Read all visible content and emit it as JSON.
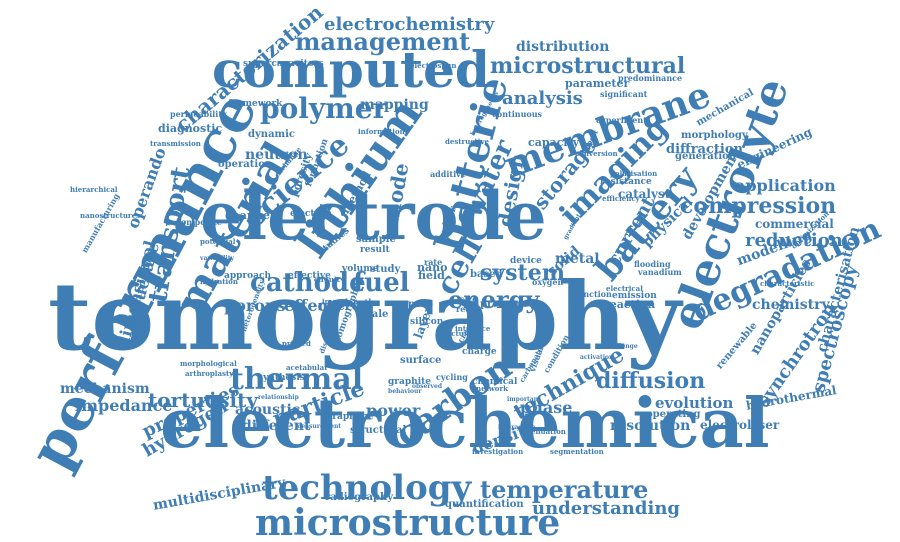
{
  "style": {
    "word_color": "#3f7db5",
    "background": "#ffffff"
  },
  "words": [
    {
      "text": "tomography"
    },
    {
      "text": "electrochemical"
    },
    {
      "text": "electrode"
    },
    {
      "text": "performance"
    },
    {
      "text": "computed"
    },
    {
      "text": "lithium"
    },
    {
      "text": "material"
    },
    {
      "text": "electrolyte"
    },
    {
      "text": "batterie"
    },
    {
      "text": "membrane"
    },
    {
      "text": "battery"
    },
    {
      "text": "microstructure"
    },
    {
      "text": "technology"
    },
    {
      "text": "degradation"
    },
    {
      "text": "carbon"
    },
    {
      "text": "thermal"
    },
    {
      "text": "imaging"
    },
    {
      "text": "science"
    },
    {
      "text": "polymer"
    },
    {
      "text": "management"
    },
    {
      "text": "cathode"
    },
    {
      "text": "fuel"
    },
    {
      "text": "cell"
    },
    {
      "text": "transport"
    },
    {
      "text": "water"
    },
    {
      "text": "temperature"
    },
    {
      "text": "technique"
    },
    {
      "text": "energy"
    },
    {
      "text": "particle"
    },
    {
      "text": "microstructural"
    },
    {
      "text": "characterization"
    },
    {
      "text": "electrochemistry"
    },
    {
      "text": "compression"
    },
    {
      "text": "application"
    },
    {
      "text": "diffusion"
    },
    {
      "text": "spectroscopy"
    },
    {
      "text": "synchrotron"
    },
    {
      "text": "properties"
    },
    {
      "text": "tortuosity"
    },
    {
      "text": "hydrogen"
    },
    {
      "text": "system"
    },
    {
      "text": "anode"
    },
    {
      "text": "design"
    },
    {
      "text": "storage"
    },
    {
      "text": "reduction"
    },
    {
      "text": "understanding"
    },
    {
      "text": "operando"
    },
    {
      "text": "structure"
    },
    {
      "text": "analysis"
    },
    {
      "text": "distribution"
    },
    {
      "text": "porous"
    },
    {
      "text": "effect"
    },
    {
      "text": "phase"
    },
    {
      "text": "current"
    },
    {
      "text": "chemistry"
    },
    {
      "text": "mechanism"
    },
    {
      "text": "impedance"
    },
    {
      "text": "neutron"
    },
    {
      "text": "resolution"
    },
    {
      "text": "evolution"
    },
    {
      "text": "metal"
    },
    {
      "text": "solid"
    },
    {
      "text": "power"
    },
    {
      "text": "density"
    },
    {
      "text": "mapping"
    },
    {
      "text": "dimensional"
    },
    {
      "text": "acoustic"
    },
    {
      "text": "different"
    },
    {
      "text": "multidisciplinary"
    },
    {
      "text": "radiography"
    },
    {
      "text": "quantification"
    },
    {
      "text": "nanoparticles"
    },
    {
      "text": "characterisation"
    },
    {
      "text": "hydrothermal"
    },
    {
      "text": "electrolyser"
    },
    {
      "text": "engineering"
    },
    {
      "text": "modelling"
    },
    {
      "text": "commercial"
    },
    {
      "text": "physical"
    },
    {
      "text": "development"
    },
    {
      "text": "catalyst"
    },
    {
      "text": "diffraction"
    },
    {
      "text": "generation"
    },
    {
      "text": "morphology"
    },
    {
      "text": "mechanical"
    },
    {
      "text": "capacity"
    },
    {
      "text": "diagnostic"
    },
    {
      "text": "framework"
    },
    {
      "text": "dynamic"
    },
    {
      "text": "operation"
    },
    {
      "text": "channel"
    },
    {
      "text": "sample"
    },
    {
      "text": "result"
    },
    {
      "text": "electron"
    },
    {
      "text": "method"
    },
    {
      "text": "porosity"
    },
    {
      "text": "formation"
    },
    {
      "text": "renewable"
    },
    {
      "text": "synthesis"
    },
    {
      "text": "surface"
    },
    {
      "text": "graphite"
    },
    {
      "text": "chemical"
    },
    {
      "text": "structural"
    },
    {
      "text": "graphene"
    },
    {
      "text": "continuous"
    },
    {
      "text": "parameter"
    },
    {
      "text": "predominance"
    },
    {
      "text": "significant"
    },
    {
      "text": "supercapacitors"
    },
    {
      "text": "electrospun"
    },
    {
      "text": "permeability"
    },
    {
      "text": "transmission"
    },
    {
      "text": "manufacturing"
    },
    {
      "text": "composite"
    },
    {
      "text": "approach"
    },
    {
      "text": "volume"
    },
    {
      "text": "study"
    },
    {
      "text": "micro"
    },
    {
      "text": "scale"
    },
    {
      "text": "image"
    },
    {
      "text": "length"
    },
    {
      "text": "nano"
    },
    {
      "text": "pore"
    },
    {
      "text": "size"
    },
    {
      "text": "field"
    },
    {
      "text": "rate"
    },
    {
      "text": "redox"
    },
    {
      "text": "pressure"
    },
    {
      "text": "oxygen"
    },
    {
      "text": "flooding"
    },
    {
      "text": "vanadium"
    },
    {
      "text": "emission"
    },
    {
      "text": "reaction"
    },
    {
      "text": "function"
    },
    {
      "text": "operating"
    },
    {
      "text": "effective"
    },
    {
      "text": "sulfur"
    },
    {
      "text": "experiment"
    },
    {
      "text": "resistance"
    },
    {
      "text": "efficiency"
    },
    {
      "text": "condition"
    },
    {
      "text": "visualization"
    },
    {
      "text": "layer"
    },
    {
      "text": "charge"
    },
    {
      "text": "crack"
    },
    {
      "text": "cycling"
    },
    {
      "text": "based"
    },
    {
      "text": "device"
    },
    {
      "text": "variability"
    },
    {
      "text": "hierarchical"
    },
    {
      "text": "nanostructures"
    },
    {
      "text": "potential"
    },
    {
      "text": "hydration"
    },
    {
      "text": "optimization"
    },
    {
      "text": "characteristic"
    },
    {
      "text": "polarisation"
    },
    {
      "text": "conversion"
    },
    {
      "text": "support"
    },
    {
      "text": "electrical"
    },
    {
      "text": "investigation"
    },
    {
      "text": "segmentation"
    },
    {
      "text": "attenuation"
    },
    {
      "text": "acetabular"
    },
    {
      "text": "arthroplasty"
    },
    {
      "text": "morphological"
    },
    {
      "text": "measurement"
    },
    {
      "text": "relationship"
    },
    {
      "text": "heterogeneity"
    },
    {
      "text": "printed"
    },
    {
      "text": "model"
    },
    {
      "text": "silicon"
    },
    {
      "text": "interface"
    },
    {
      "text": "fracture"
    },
    {
      "text": "discharge"
    },
    {
      "text": "tomographic"
    },
    {
      "text": "information"
    },
    {
      "text": "additive"
    },
    {
      "text": "interaction"
    },
    {
      "text": "activation"
    },
    {
      "text": "challenge"
    },
    {
      "text": "destructive"
    },
    {
      "text": "heterogeneous"
    },
    {
      "text": "gradient"
    },
    {
      "text": "network"
    },
    {
      "text": "behaviour"
    },
    {
      "text": "important"
    },
    {
      "text": "carbonate"
    },
    {
      "text": "circuit"
    },
    {
      "text": "exchange"
    },
    {
      "text": "studies"
    },
    {
      "text": "observed"
    }
  ]
}
